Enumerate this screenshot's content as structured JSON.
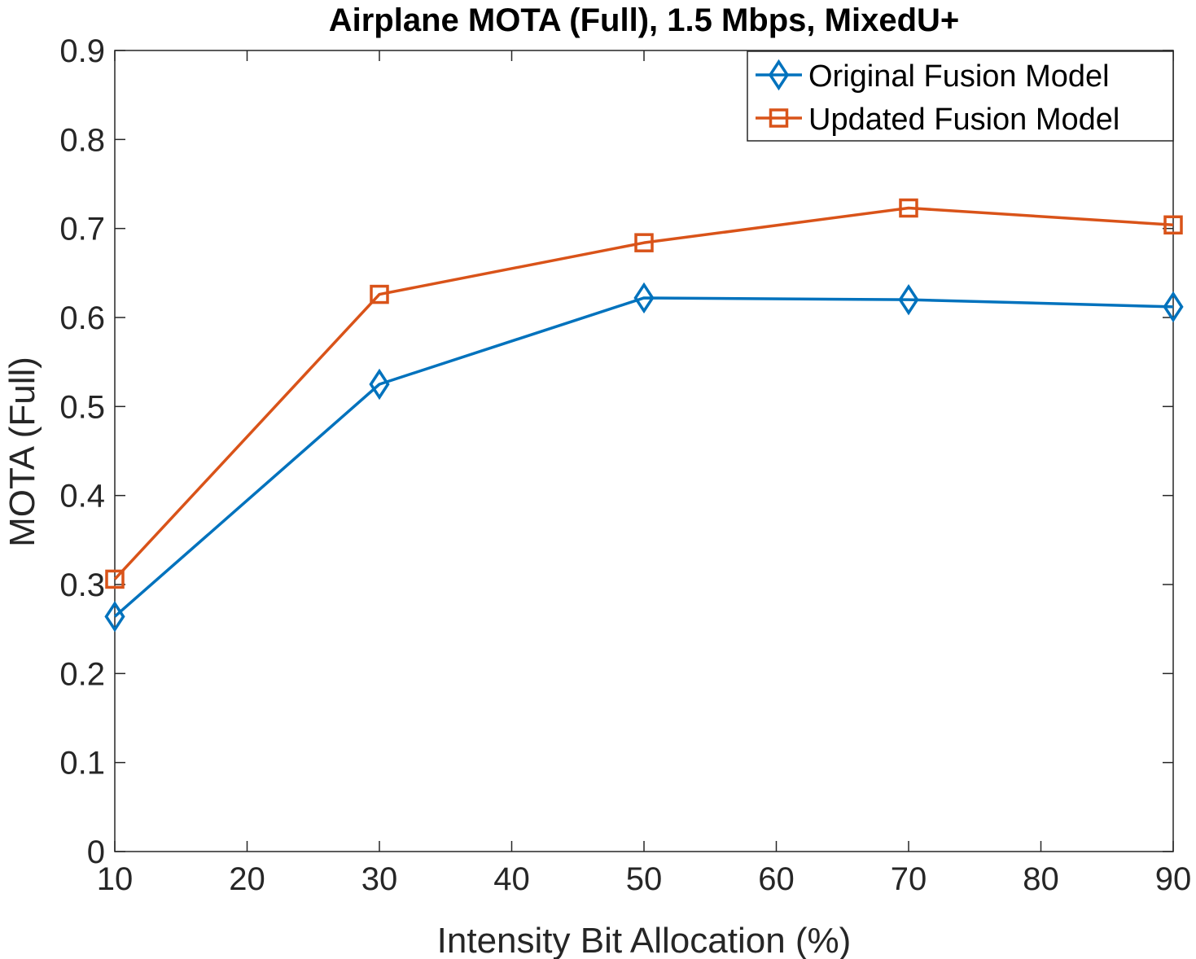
{
  "chart_data": {
    "type": "line",
    "title": "Airplane MOTA (Full), 1.5 Mbps, MixedU+",
    "xlabel": "Intensity Bit Allocation (%)",
    "ylabel": "MOTA (Full)",
    "xlim": [
      10,
      90
    ],
    "ylim": [
      0,
      0.9
    ],
    "xticks": [
      10,
      20,
      30,
      40,
      50,
      60,
      70,
      80,
      90
    ],
    "yticks": [
      0,
      0.1,
      0.2,
      0.3,
      0.4,
      0.5,
      0.6,
      0.7,
      0.8,
      0.9
    ],
    "ytick_labels": [
      "0",
      "0.1",
      "0.2",
      "0.3",
      "0.4",
      "0.5",
      "0.6",
      "0.7",
      "0.8",
      "0.9"
    ],
    "grid": false,
    "legend_position": "top-right",
    "x": [
      10,
      30,
      50,
      70,
      90
    ],
    "series": [
      {
        "name": "Original Fusion Model",
        "marker": "diamond",
        "color": "#0072BD",
        "values": [
          0.264,
          0.525,
          0.622,
          0.62,
          0.612
        ]
      },
      {
        "name": "Updated Fusion Model",
        "marker": "square",
        "color": "#D95319",
        "values": [
          0.306,
          0.626,
          0.684,
          0.723,
          0.704
        ]
      }
    ]
  }
}
